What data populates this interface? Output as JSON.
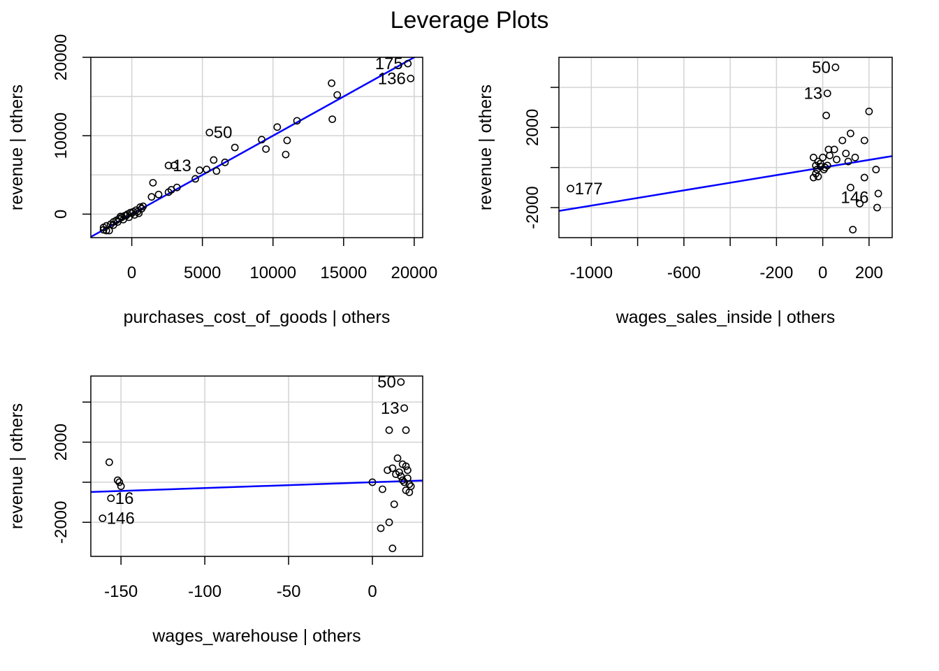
{
  "title": "Leverage Plots",
  "colors": {
    "fit_line": "#0000ff",
    "points": "#000000",
    "grid": "#d3d3d3",
    "axis": "#000000"
  },
  "chart_data": [
    {
      "type": "scatter",
      "xlabel": "purchases_cost_of_goods | others",
      "ylabel": "revenue  | others",
      "xlim": [
        -2900,
        20600
      ],
      "ylim": [
        -3000,
        20000
      ],
      "xticks": [
        0,
        5000,
        10000,
        15000,
        20000
      ],
      "yticks": [
        0,
        10000,
        20000
      ],
      "ygrid": [
        0,
        5000,
        10000,
        15000,
        20000
      ],
      "grid": true,
      "fit": {
        "slope": 1.0,
        "intercept": 0
      },
      "points": [
        [
          19550,
          19200
        ],
        [
          19750,
          17300
        ],
        [
          14150,
          16700
        ],
        [
          14550,
          15200
        ],
        [
          14200,
          12100
        ],
        [
          11700,
          11900
        ],
        [
          10300,
          11100
        ],
        [
          9200,
          9500
        ],
        [
          9500,
          8300
        ],
        [
          11000,
          9400
        ],
        [
          10900,
          7600
        ],
        [
          7300,
          8500
        ],
        [
          5500,
          10400
        ],
        [
          6600,
          6600
        ],
        [
          5800,
          6900
        ],
        [
          6000,
          5500
        ],
        [
          5300,
          5700
        ],
        [
          4800,
          5600
        ],
        [
          4500,
          4500
        ],
        [
          2600,
          6200
        ],
        [
          3000,
          6200
        ],
        [
          3200,
          3400
        ],
        [
          2800,
          3100
        ],
        [
          2600,
          2800
        ],
        [
          1500,
          4000
        ],
        [
          1900,
          2500
        ],
        [
          1400,
          2200
        ],
        [
          800,
          1000
        ],
        [
          600,
          900
        ],
        [
          300,
          500
        ],
        [
          100,
          300
        ],
        [
          -100,
          200
        ],
        [
          -300,
          0
        ],
        [
          -500,
          -200
        ],
        [
          -700,
          -400
        ],
        [
          -900,
          -600
        ],
        [
          -1100,
          -800
        ],
        [
          -1300,
          -1000
        ],
        [
          -1500,
          -1300
        ],
        [
          -1800,
          -1500
        ],
        [
          -2000,
          -1700
        ],
        [
          -2000,
          -2000
        ],
        [
          -1800,
          -2100
        ],
        [
          -1600,
          -2100
        ],
        [
          -1300,
          -1400
        ],
        [
          -800,
          -300
        ],
        [
          200,
          -100
        ],
        [
          500,
          100
        ],
        [
          -200,
          -400
        ],
        [
          0,
          100
        ],
        [
          -400,
          -200
        ],
        [
          -600,
          -700
        ],
        [
          400,
          300
        ],
        [
          700,
          700
        ],
        [
          -1000,
          -1000
        ]
      ],
      "labels": [
        {
          "text": "175",
          "x": 19550,
          "y": 19200,
          "pos": "left"
        },
        {
          "text": "136",
          "x": 19750,
          "y": 17300,
          "pos": "left"
        },
        {
          "text": "50",
          "x": 5500,
          "y": 10400,
          "pos": "right"
        },
        {
          "text": "13",
          "x": 2600,
          "y": 6200,
          "pos": "right"
        }
      ]
    },
    {
      "type": "scatter",
      "xlabel": "wages_sales_inside | others",
      "ylabel": "revenue  | others",
      "xlim": [
        -1140,
        300
      ],
      "ylim": [
        -3500,
        5500
      ],
      "xticks": [
        -1000,
        -600,
        -200,
        0,
        200
      ],
      "xminor": [
        -800,
        -400
      ],
      "xgrid": [
        -1000,
        -800,
        -600,
        -400,
        -200,
        0,
        200
      ],
      "yticks": [
        -2000,
        2000
      ],
      "yminor": [
        0,
        4000
      ],
      "ygrid": [
        -2000,
        0,
        2000,
        4000
      ],
      "grid": true,
      "fit": {
        "slope": 1.9,
        "intercept": 0
      },
      "points": [
        [
          -1090,
          -1050
        ],
        [
          55,
          5000
        ],
        [
          20,
          3700
        ],
        [
          15,
          2600
        ],
        [
          200,
          2800
        ],
        [
          85,
          1350
        ],
        [
          180,
          1350
        ],
        [
          120,
          1700
        ],
        [
          50,
          900
        ],
        [
          30,
          600
        ],
        [
          0,
          500
        ],
        [
          -40,
          500
        ],
        [
          -20,
          300
        ],
        [
          -30,
          100
        ],
        [
          -10,
          50
        ],
        [
          10,
          0
        ],
        [
          20,
          100
        ],
        [
          -25,
          -100
        ],
        [
          -30,
          -300
        ],
        [
          -40,
          -500
        ],
        [
          -20,
          -450
        ],
        [
          25,
          900
        ],
        [
          60,
          400
        ],
        [
          100,
          700
        ],
        [
          140,
          500
        ],
        [
          110,
          300
        ],
        [
          180,
          -500
        ],
        [
          230,
          -100
        ],
        [
          120,
          -1000
        ],
        [
          160,
          -1800
        ],
        [
          240,
          -1300
        ],
        [
          235,
          -2000
        ],
        [
          130,
          -3100
        ],
        [
          -10,
          200
        ],
        [
          5,
          -100
        ]
      ],
      "labels": [
        {
          "text": "50",
          "x": 55,
          "y": 5000,
          "pos": "left"
        },
        {
          "text": "13",
          "x": 20,
          "y": 3700,
          "pos": "left"
        },
        {
          "text": "177",
          "x": -1090,
          "y": -1050,
          "pos": "right"
        },
        {
          "text": "146",
          "x": 120,
          "y": -1000,
          "pos": "below"
        }
      ]
    },
    {
      "type": "scatter",
      "xlabel": "wages_warehouse | others",
      "ylabel": "revenue  | others",
      "xlim": [
        -168,
        30
      ],
      "ylim": [
        -3700,
        5300
      ],
      "xticks": [
        -150,
        -100,
        -50,
        0
      ],
      "xgrid": [
        -150,
        -100,
        -50,
        0
      ],
      "yticks": [
        -2000,
        2000
      ],
      "yminor": [
        0,
        4000
      ],
      "ygrid": [
        -2000,
        0,
        2000,
        4000
      ],
      "grid": true,
      "fit": {
        "slope": 2.9,
        "intercept": 0
      },
      "points": [
        [
          17,
          5000
        ],
        [
          19,
          3700
        ],
        [
          10,
          2600
        ],
        [
          20,
          2600
        ],
        [
          -157,
          1000
        ],
        [
          -152,
          100
        ],
        [
          -150,
          -200
        ],
        [
          -151,
          0
        ],
        [
          -156,
          -800
        ],
        [
          -161,
          -1800
        ],
        [
          0,
          0
        ],
        [
          6,
          -350
        ],
        [
          10,
          -2000
        ],
        [
          5,
          -2300
        ],
        [
          12,
          -3300
        ],
        [
          13,
          -1100
        ],
        [
          15,
          1200
        ],
        [
          18,
          900
        ],
        [
          12,
          700
        ],
        [
          20,
          800
        ],
        [
          14,
          400
        ],
        [
          17,
          300
        ],
        [
          21,
          200
        ],
        [
          19,
          0
        ],
        [
          22,
          -100
        ],
        [
          20,
          -400
        ],
        [
          22,
          -500
        ],
        [
          18,
          100
        ],
        [
          16,
          500
        ],
        [
          9,
          600
        ],
        [
          21,
          600
        ],
        [
          23,
          -200
        ]
      ],
      "labels": [
        {
          "text": "50",
          "x": 17,
          "y": 5000,
          "pos": "left"
        },
        {
          "text": "13",
          "x": 19,
          "y": 3700,
          "pos": "left"
        },
        {
          "text": "16",
          "x": -156,
          "y": -800,
          "pos": "right"
        },
        {
          "text": "146",
          "x": -161,
          "y": -1800,
          "pos": "right"
        }
      ]
    }
  ]
}
